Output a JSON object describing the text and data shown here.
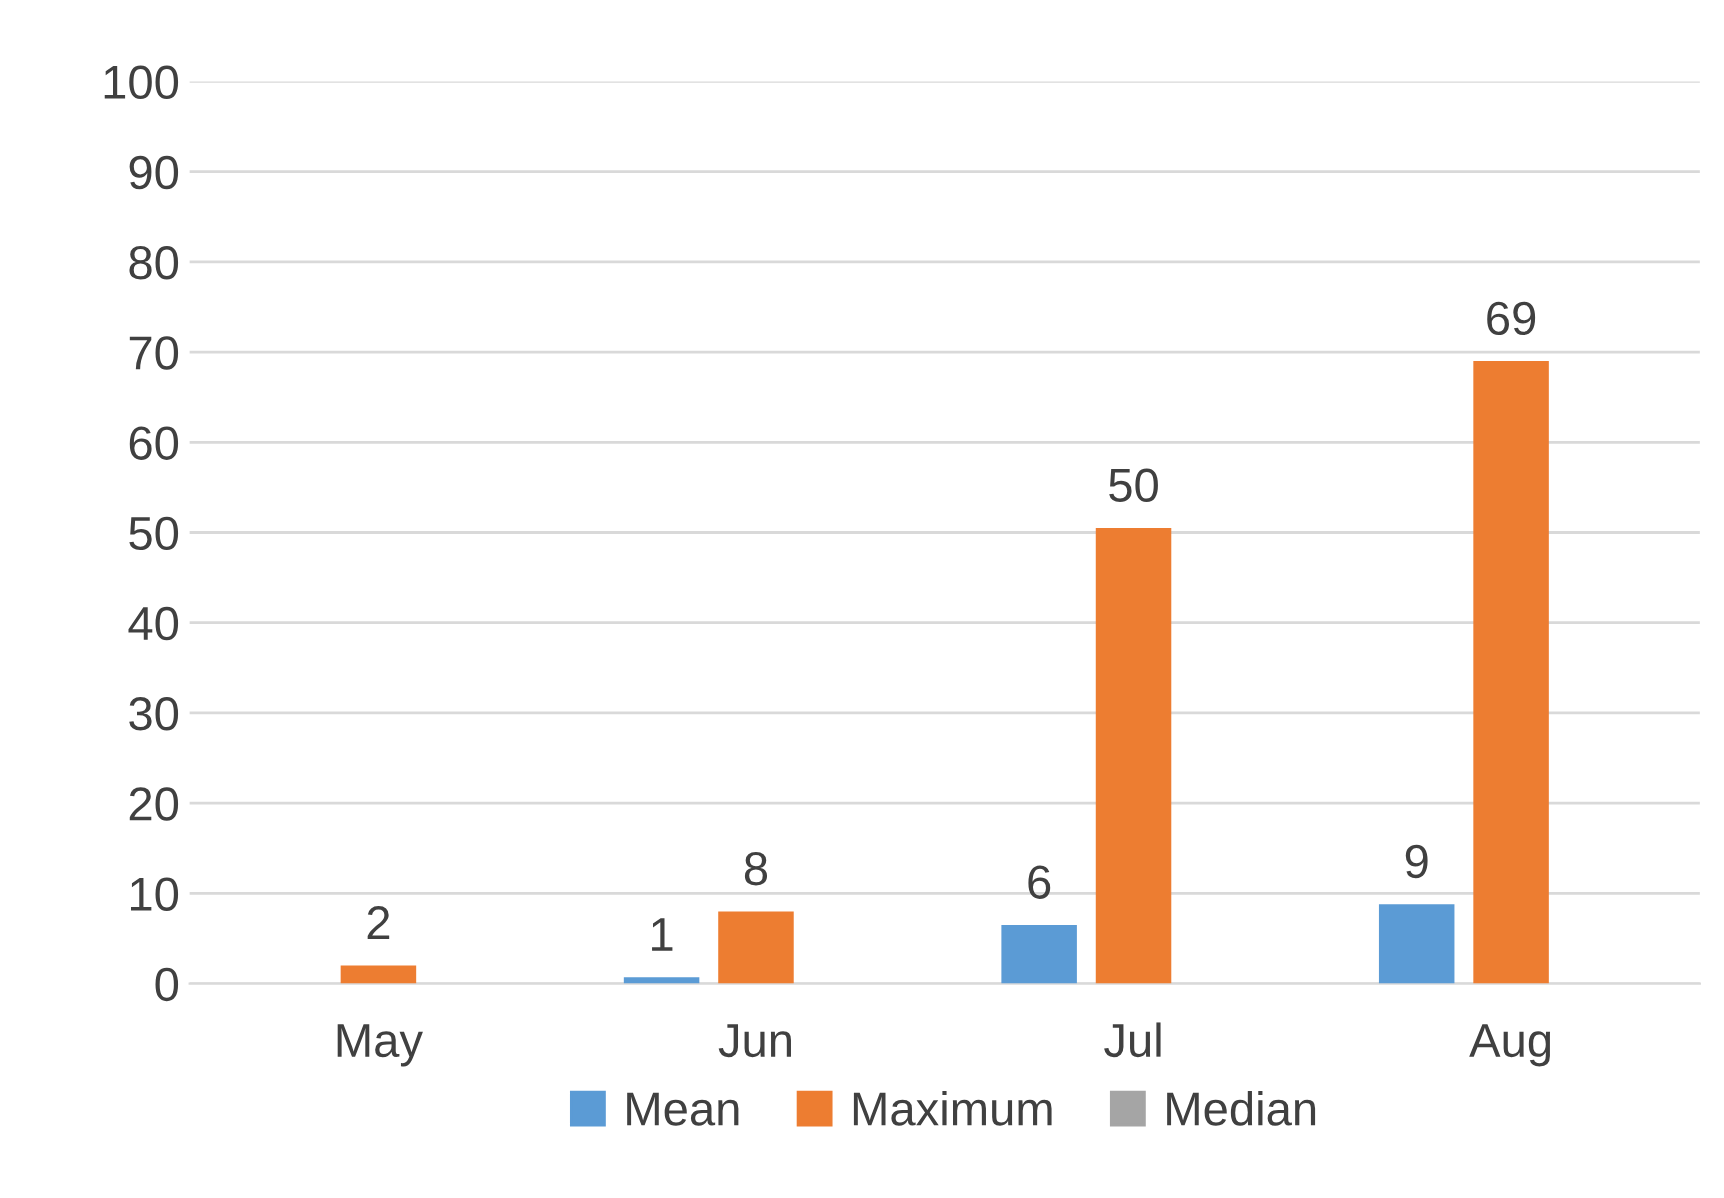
{
  "chart_data": {
    "type": "bar",
    "categories": [
      "May",
      "Jun",
      "Jul",
      "Aug"
    ],
    "series": [
      {
        "name": "Mean",
        "color": "#5b9bd5",
        "values": [
          null,
          0.7,
          6.5,
          8.8
        ],
        "value_labels": [
          null,
          "1",
          "6",
          "9"
        ]
      },
      {
        "name": "Maximum",
        "color": "#ed7d31",
        "values": [
          2,
          8,
          50.5,
          69
        ],
        "value_labels": [
          "2",
          "8",
          "50",
          "69"
        ]
      },
      {
        "name": "Median",
        "color": "#a5a5a5",
        "values": [
          null,
          null,
          null,
          null
        ],
        "value_labels": [
          null,
          null,
          null,
          null
        ]
      }
    ],
    "ylim": [
      0,
      100
    ],
    "yticks": [
      0,
      10,
      20,
      30,
      40,
      50,
      60,
      70,
      80,
      90,
      100
    ],
    "grid": "y",
    "legend": "bottom"
  }
}
